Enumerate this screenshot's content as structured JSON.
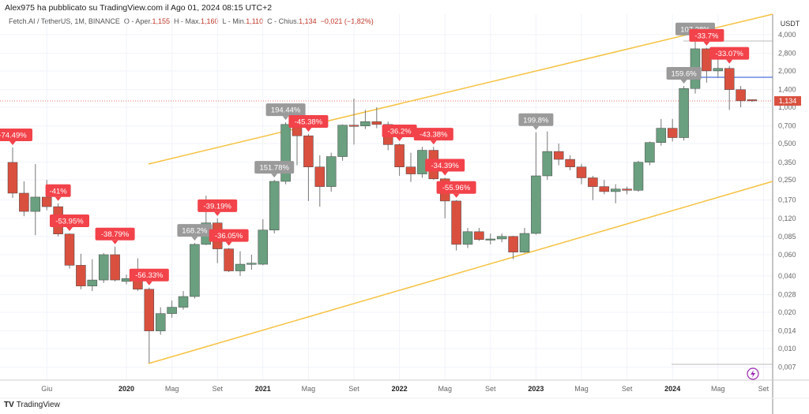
{
  "publisher": "Alex975 ha pubblicato su TradingView.com il Ago 01, 2024 08:15 UTC+2",
  "legend": {
    "symbol": "Fetch.AI / TetherUS, 1M, BINANCE",
    "o_label": "O - Aper.",
    "o": "1,155",
    "h_label": "H - Max.",
    "h": "1,160",
    "l_label": "L - Min.",
    "l": "1,110",
    "c_label": "C - Chius.",
    "c": "1,134",
    "change": "−0,021 (−1,82%)"
  },
  "currency": "USDT",
  "last_price": "1,134",
  "brand": "TradingView",
  "colors": {
    "up": "#6a9f7f",
    "down": "#d9503f",
    "label_down": "#f2424a",
    "label_up": "#9a9a9a",
    "trend": "#f5c242",
    "hline": "#4a6fe0"
  },
  "chart_data": {
    "type": "candlestick",
    "scale": "log",
    "start_month": "2019-03",
    "y_ticks": [
      "4,000",
      "2,800",
      "2,000",
      "1,400",
      "1,000",
      "0,700",
      "0,500",
      "0,350",
      "0,250",
      "0,170",
      "0,120",
      "0,085",
      "0,060",
      "0,040",
      "0,028",
      "0,020",
      "0,014",
      "0,010",
      "0,007"
    ],
    "y_tick_values": [
      4,
      2.8,
      2,
      1.4,
      1,
      0.7,
      0.5,
      0.35,
      0.25,
      0.17,
      0.12,
      0.085,
      0.06,
      0.04,
      0.028,
      0.02,
      0.014,
      0.01,
      0.007
    ],
    "x_ticks": [
      {
        "label": "Giu",
        "m": 3
      },
      {
        "label": "2020",
        "m": 10,
        "bold": true
      },
      {
        "label": "Mag",
        "m": 14
      },
      {
        "label": "Set",
        "m": 18
      },
      {
        "label": "2021",
        "m": 22,
        "bold": true
      },
      {
        "label": "Mag",
        "m": 26
      },
      {
        "label": "Set",
        "m": 30
      },
      {
        "label": "2022",
        "m": 34,
        "bold": true
      },
      {
        "label": "Mag",
        "m": 38
      },
      {
        "label": "Set",
        "m": 42
      },
      {
        "label": "2023",
        "m": 46,
        "bold": true
      },
      {
        "label": "Mag",
        "m": 50
      },
      {
        "label": "Set",
        "m": 54
      },
      {
        "label": "2024",
        "m": 58,
        "bold": true
      },
      {
        "label": "Mag",
        "m": 62
      },
      {
        "label": "Set",
        "m": 66
      }
    ],
    "ohlc": [
      [
        0.349,
        0.464,
        0.177,
        0.194
      ],
      [
        0.194,
        0.243,
        0.125,
        0.137
      ],
      [
        0.137,
        0.338,
        0.087,
        0.18
      ],
      [
        0.18,
        0.25,
        0.14,
        0.15
      ],
      [
        0.15,
        0.16,
        0.085,
        0.089
      ],
      [
        0.089,
        0.09,
        0.046,
        0.049
      ],
      [
        0.049,
        0.061,
        0.031,
        0.033
      ],
      [
        0.033,
        0.055,
        0.03,
        0.037
      ],
      [
        0.037,
        0.062,
        0.035,
        0.06
      ],
      [
        0.06,
        0.07,
        0.036,
        0.037
      ],
      [
        0.036,
        0.041,
        0.034,
        0.038
      ],
      [
        0.039,
        0.056,
        0.03,
        0.031
      ],
      [
        0.031,
        0.032,
        0.0076,
        0.014
      ],
      [
        0.014,
        0.022,
        0.013,
        0.0195
      ],
      [
        0.0195,
        0.025,
        0.018,
        0.022
      ],
      [
        0.022,
        0.03,
        0.021,
        0.027
      ],
      [
        0.027,
        0.075,
        0.026,
        0.073
      ],
      [
        0.073,
        0.185,
        0.072,
        0.11
      ],
      [
        0.11,
        0.12,
        0.051,
        0.067
      ],
      [
        0.067,
        0.068,
        0.043,
        0.044
      ],
      [
        0.044,
        0.064,
        0.04,
        0.05
      ],
      [
        0.05,
        0.06,
        0.045,
        0.051
      ],
      [
        0.05,
        0.118,
        0.049,
        0.096
      ],
      [
        0.096,
        0.25,
        0.09,
        0.243
      ],
      [
        0.243,
        0.75,
        0.23,
        0.72
      ],
      [
        0.72,
        0.75,
        0.33,
        0.58
      ],
      [
        0.58,
        0.6,
        0.167,
        0.32
      ],
      [
        0.32,
        0.4,
        0.15,
        0.22
      ],
      [
        0.22,
        0.42,
        0.2,
        0.39
      ],
      [
        0.39,
        0.72,
        0.36,
        0.71
      ],
      [
        0.71,
        1.18,
        0.49,
        0.7
      ],
      [
        0.7,
        0.95,
        0.66,
        0.76
      ],
      [
        0.76,
        1.0,
        0.67,
        0.72
      ],
      [
        0.72,
        0.76,
        0.44,
        0.49
      ],
      [
        0.49,
        0.5,
        0.27,
        0.32
      ],
      [
        0.32,
        0.42,
        0.24,
        0.28
      ],
      [
        0.28,
        0.47,
        0.26,
        0.44
      ],
      [
        0.44,
        0.47,
        0.25,
        0.255
      ],
      [
        0.255,
        0.26,
        0.12,
        0.167
      ],
      [
        0.167,
        0.17,
        0.065,
        0.073
      ],
      [
        0.073,
        0.1,
        0.068,
        0.093
      ],
      [
        0.093,
        0.1,
        0.078,
        0.08
      ],
      [
        0.08,
        0.09,
        0.073,
        0.081
      ],
      [
        0.081,
        0.09,
        0.076,
        0.085
      ],
      [
        0.085,
        0.086,
        0.055,
        0.063
      ],
      [
        0.063,
        0.1,
        0.062,
        0.09
      ],
      [
        0.09,
        0.62,
        0.088,
        0.27
      ],
      [
        0.27,
        0.63,
        0.25,
        0.43
      ],
      [
        0.43,
        0.5,
        0.33,
        0.37
      ],
      [
        0.37,
        0.4,
        0.3,
        0.32
      ],
      [
        0.32,
        0.34,
        0.23,
        0.26
      ],
      [
        0.26,
        0.27,
        0.17,
        0.22
      ],
      [
        0.22,
        0.25,
        0.19,
        0.2
      ],
      [
        0.2,
        0.23,
        0.16,
        0.21
      ],
      [
        0.21,
        0.22,
        0.19,
        0.205
      ],
      [
        0.205,
        0.36,
        0.2,
        0.35
      ],
      [
        0.35,
        0.52,
        0.33,
        0.51
      ],
      [
        0.51,
        0.8,
        0.48,
        0.67
      ],
      [
        0.67,
        0.8,
        0.52,
        0.56
      ],
      [
        0.56,
        1.5,
        0.53,
        1.43
      ],
      [
        1.43,
        3.5,
        1.3,
        3.05
      ],
      [
        3.05,
        3.1,
        1.6,
        2.0
      ],
      [
        2.0,
        2.6,
        1.75,
        2.1
      ],
      [
        2.1,
        2.2,
        0.95,
        1.4
      ],
      [
        1.4,
        1.5,
        1.0,
        1.13
      ],
      [
        1.155,
        1.16,
        1.11,
        1.134
      ]
    ],
    "annotations": [
      {
        "m": 0,
        "text": "-74.49%",
        "kind": "down"
      },
      {
        "m": 4,
        "text": "-41%",
        "kind": "down"
      },
      {
        "m": 5,
        "text": "-53.95%",
        "kind": "down"
      },
      {
        "m": 9,
        "text": "-38.79%",
        "kind": "down"
      },
      {
        "m": 12,
        "text": "-56.33%",
        "kind": "down"
      },
      {
        "m": 16,
        "text": "168.2%",
        "kind": "up"
      },
      {
        "m": 18,
        "text": "-39.19%",
        "kind": "down"
      },
      {
        "m": 19,
        "text": "-36.05%",
        "kind": "down"
      },
      {
        "m": 23,
        "text": "151.78%",
        "kind": "up"
      },
      {
        "m": 24,
        "text": "194.44%",
        "kind": "up"
      },
      {
        "m": 26,
        "text": "-45.38%",
        "kind": "down"
      },
      {
        "m": 34,
        "text": "-36.2%",
        "kind": "down"
      },
      {
        "m": 37,
        "text": "-43.38%",
        "kind": "down"
      },
      {
        "m": 38,
        "text": "-34.39%",
        "kind": "down"
      },
      {
        "m": 39,
        "text": "-55.96%",
        "kind": "down"
      },
      {
        "m": 46,
        "text": "199.8%",
        "kind": "up"
      },
      {
        "m": 59,
        "text": "159.6%",
        "kind": "up"
      },
      {
        "m": 60,
        "text": "107.38%",
        "kind": "up"
      },
      {
        "m": 61,
        "text": "-33.7%",
        "kind": "down"
      },
      {
        "m": 63,
        "text": "-33.07%",
        "kind": "down"
      }
    ]
  }
}
